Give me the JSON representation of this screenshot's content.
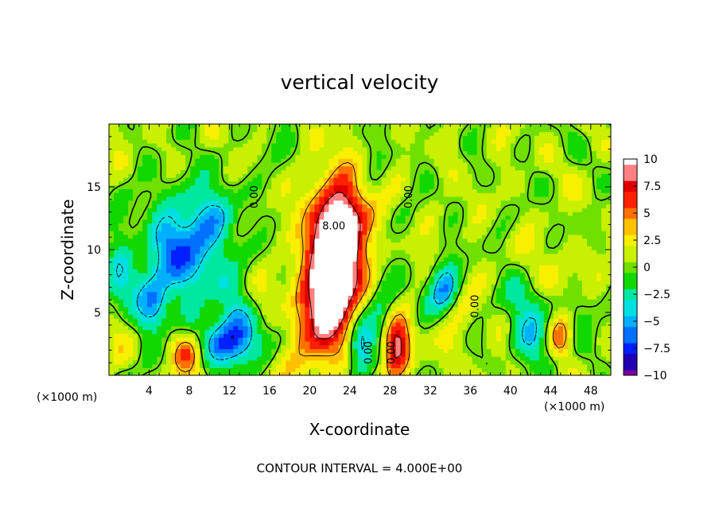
{
  "chart_data": {
    "type": "heatmap",
    "title": "vertical velocity",
    "xlabel": "X-coordinate",
    "ylabel": "Z-coordinate",
    "x_unit": "(×1000 m)",
    "x_unit_right": "(×1000 m)",
    "x_ticks": [
      4,
      8,
      12,
      16,
      20,
      24,
      28,
      32,
      36,
      40,
      44,
      48
    ],
    "y_ticks": [
      5,
      10,
      15
    ],
    "xlim": [
      0,
      50
    ],
    "ylim": [
      0,
      20
    ],
    "footer": "CONTOUR INTERVAL = 4.000E+00",
    "colorbar": {
      "range": [
        -10,
        10
      ],
      "tick_values": [
        10,
        7.5,
        5,
        2.5,
        0,
        -2.5,
        -5,
        -7.5,
        -10
      ],
      "tick_labels": [
        "10",
        "7.5",
        "5",
        "2.5",
        "0",
        "−2.5",
        "−5",
        "−7.5",
        "−10"
      ],
      "colors": [
        "#7a00a0",
        "#2000b0",
        "#0020ff",
        "#0070ff",
        "#00b0ff",
        "#00e0e0",
        "#00e8a0",
        "#10d800",
        "#70e000",
        "#c8f000",
        "#f8f000",
        "#ffc000",
        "#ff7000",
        "#ff2000",
        "#e00000",
        "#ff8080",
        "#ffffff"
      ]
    },
    "contour_labels": [
      {
        "text": "0.00",
        "x": 14.8,
        "y": 14.2,
        "rotate": -90
      },
      {
        "text": "8.00",
        "x": 22.4,
        "y": 11.6,
        "rotate": 0
      },
      {
        "text": "0.00",
        "x": 30.2,
        "y": 14.2,
        "rotate": -90
      },
      {
        "text": "0.00",
        "x": 36.8,
        "y": 5.5,
        "rotate": -90
      },
      {
        "text": "0.00",
        "x": 26.2,
        "y": 1.8,
        "rotate": -90
      },
      {
        "text": "0.00",
        "x": 28.5,
        "y": 1.8,
        "rotate": -90
      }
    ],
    "features": [
      {
        "value": 9.2,
        "x": 22.3,
        "y": 7.5,
        "sx": 2.0,
        "sy": 4.6,
        "rot": -18
      },
      {
        "value": 10.5,
        "x": 22.6,
        "y": 8.2,
        "sx": 1.0,
        "sy": 2.8,
        "rot": -10
      },
      {
        "value": 4.0,
        "x": 22.0,
        "y": 11.5,
        "sx": 2.8,
        "sy": 3.0,
        "rot": 0
      },
      {
        "value": 2.2,
        "x": 22.0,
        "y": 13.5,
        "sx": 3.2,
        "sy": 2.5,
        "rot": 0
      },
      {
        "value": 9.0,
        "x": 28.6,
        "y": 2.4,
        "sx": 0.9,
        "sy": 1.6,
        "rot": 0
      },
      {
        "value": 6.5,
        "x": 7.9,
        "y": 1.9,
        "sx": 1.1,
        "sy": 1.3,
        "rot": 0
      },
      {
        "value": 6.0,
        "x": 45.0,
        "y": 3.2,
        "sx": 0.9,
        "sy": 1.2,
        "rot": 0
      },
      {
        "value": 1.5,
        "x": 38.0,
        "y": 4.0,
        "sx": 3.0,
        "sy": 2.5,
        "rot": 0
      },
      {
        "value": -5.0,
        "x": 6.8,
        "y": 9.0,
        "sx": 3.2,
        "sy": 3.2,
        "rot": 0
      },
      {
        "value": -3.5,
        "x": 9.5,
        "y": 12.0,
        "sx": 2.6,
        "sy": 2.6,
        "rot": 0
      },
      {
        "value": -4.0,
        "x": 4.6,
        "y": 5.5,
        "sx": 1.0,
        "sy": 1.6,
        "rot": 0
      },
      {
        "value": -7.5,
        "x": 11.6,
        "y": 2.5,
        "sx": 1.6,
        "sy": 1.3,
        "rot": 0
      },
      {
        "value": -4.0,
        "x": 13.0,
        "y": 3.5,
        "sx": 1.5,
        "sy": 1.5,
        "rot": 0
      },
      {
        "value": -5.0,
        "x": 25.0,
        "y": 2.4,
        "sx": 0.8,
        "sy": 1.6,
        "rot": 0
      },
      {
        "value": -6.0,
        "x": 33.5,
        "y": 7.0,
        "sx": 1.0,
        "sy": 1.4,
        "rot": 0
      },
      {
        "value": -5.0,
        "x": 42.0,
        "y": 3.0,
        "sx": 1.8,
        "sy": 1.7,
        "rot": 0
      },
      {
        "value": -3.0,
        "x": 40.0,
        "y": 6.0,
        "sx": 1.5,
        "sy": 1.4,
        "rot": 0
      },
      {
        "value": -2.0,
        "x": 18.0,
        "y": 14.5,
        "sx": 1.4,
        "sy": 3.0,
        "rot": 0
      },
      {
        "value": -2.0,
        "x": 26.5,
        "y": 14.5,
        "sx": 1.4,
        "sy": 3.0,
        "rot": 0
      },
      {
        "value": -2.5,
        "x": 27.0,
        "y": 6.0,
        "sx": 1.6,
        "sy": 2.4,
        "rot": 0
      },
      {
        "value": -3.0,
        "x": 1.0,
        "y": 8.0,
        "sx": 1.0,
        "sy": 2.0,
        "rot": 0
      },
      {
        "value": -2.0,
        "x": 47.0,
        "y": 6.0,
        "sx": 2.0,
        "sy": 2.0,
        "rot": 0
      },
      {
        "value": 1.8,
        "x": 46.0,
        "y": 8.0,
        "sx": 2.5,
        "sy": 1.8,
        "rot": 0
      }
    ]
  }
}
